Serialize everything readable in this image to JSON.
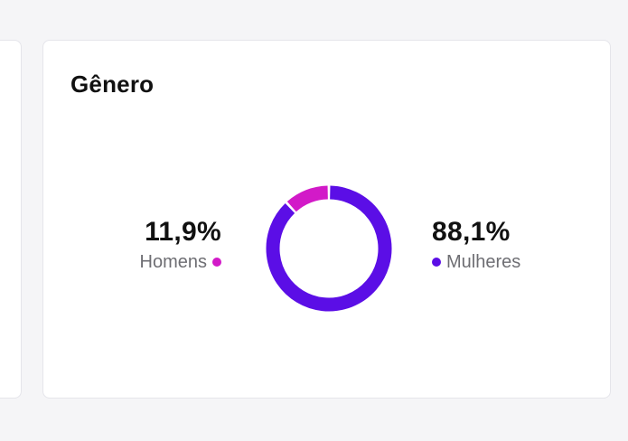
{
  "card": {
    "title": "Gênero"
  },
  "segments": [
    {
      "key": "women",
      "value_text": "88,1%",
      "label": "Mulheres",
      "percent": 88.1,
      "color": "#5b0ee6"
    },
    {
      "key": "men",
      "value_text": "11,9%",
      "label": "Homens",
      "percent": 11.9,
      "color": "#d21ac8"
    }
  ]
}
